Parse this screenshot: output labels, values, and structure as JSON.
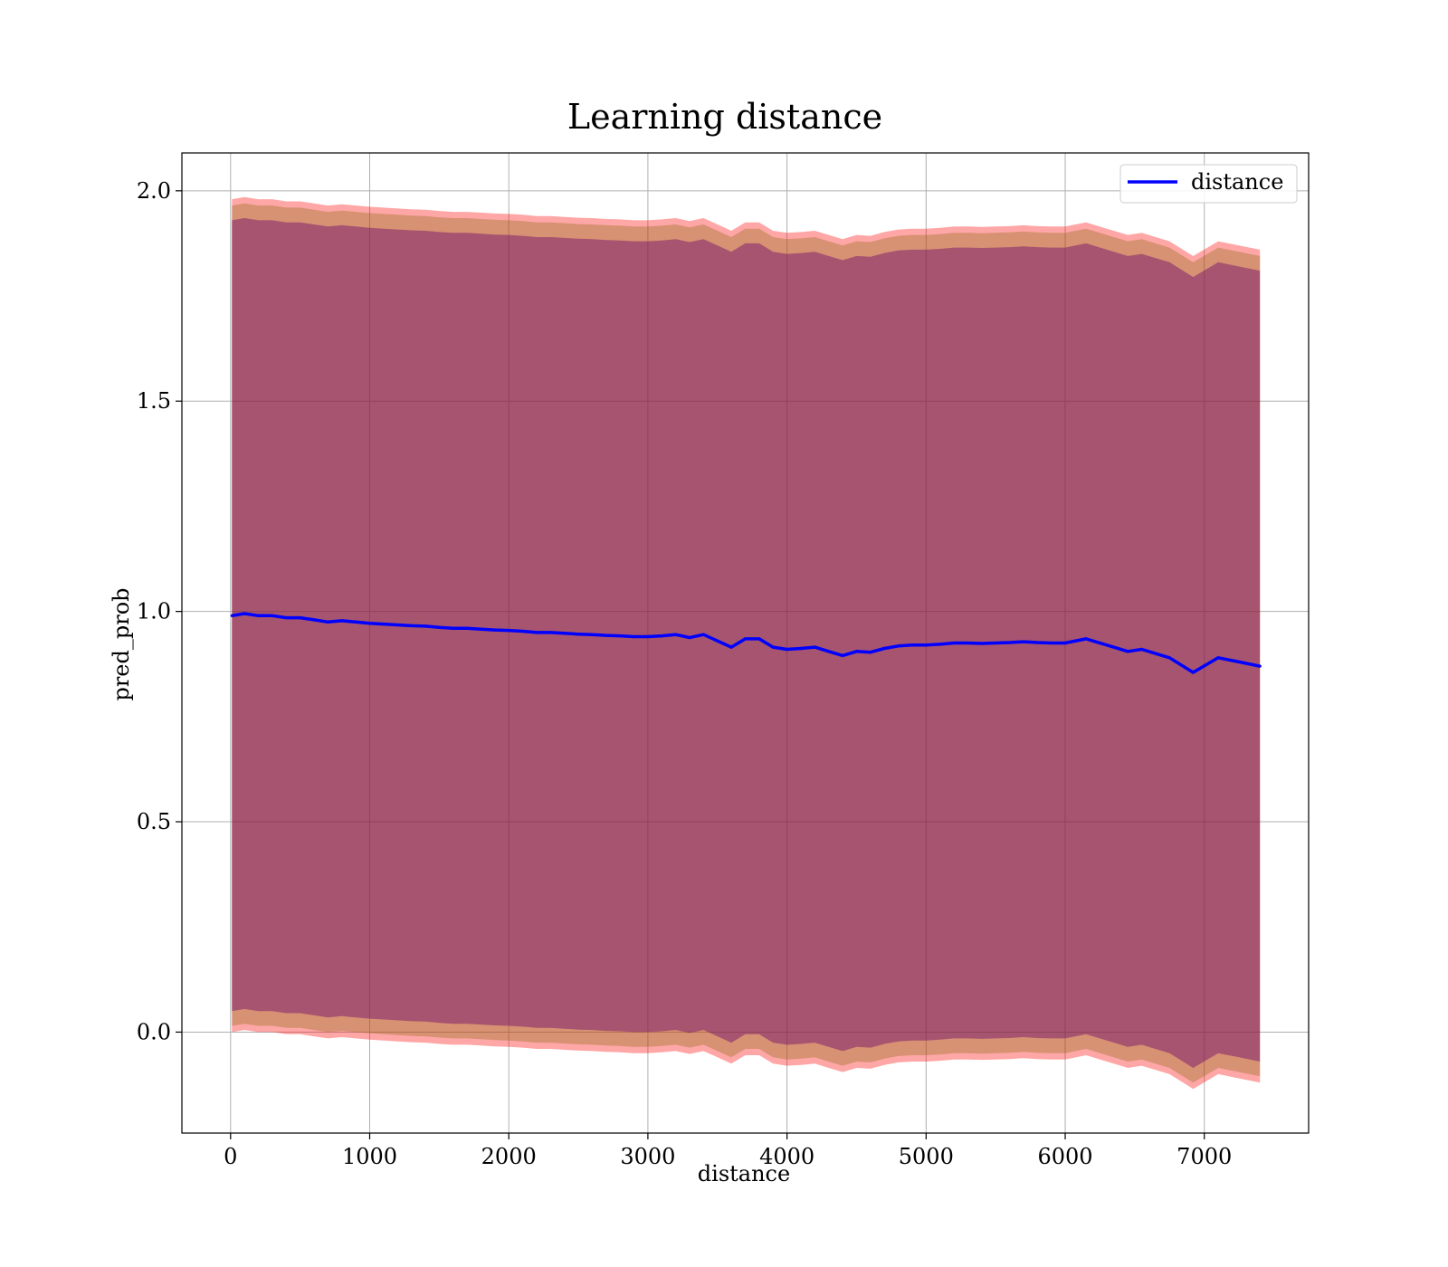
{
  "chart_data": {
    "type": "line",
    "title": "Learning distance",
    "xlabel": "distance",
    "ylabel": "pred_prob",
    "xlim": [
      -350,
      7750
    ],
    "ylim": [
      -0.24,
      2.09
    ],
    "xticks": [
      0,
      1000,
      2000,
      3000,
      4000,
      5000,
      6000,
      7000
    ],
    "yticks": [
      0.0,
      0.5,
      1.0,
      1.5,
      2.0
    ],
    "xtick_labels": [
      "0",
      "1000",
      "2000",
      "3000",
      "4000",
      "5000",
      "6000",
      "7000"
    ],
    "ytick_labels": [
      "0.0",
      "0.5",
      "1.0",
      "1.5",
      "2.0"
    ],
    "grid": true,
    "legend": {
      "position": "top-right",
      "entries": [
        "distance"
      ]
    },
    "colors": {
      "line": "#0000ff",
      "band_outer": "#ff0000",
      "band_middle": "#8b6914",
      "band_inner": "#6a0a6a",
      "grid": "#b0b0b0"
    },
    "series": [
      {
        "name": "distance",
        "x": [
          10,
          100,
          200,
          300,
          400,
          500,
          600,
          700,
          800,
          900,
          1000,
          1100,
          1200,
          1300,
          1400,
          1500,
          1600,
          1700,
          1800,
          1900,
          2000,
          2100,
          2200,
          2300,
          2400,
          2500,
          2600,
          2700,
          2800,
          2900,
          3000,
          3100,
          3200,
          3300,
          3400,
          3500,
          3600,
          3700,
          3800,
          3900,
          4000,
          4100,
          4200,
          4300,
          4400,
          4500,
          4600,
          4700,
          4800,
          4900,
          5000,
          5100,
          5200,
          5300,
          5400,
          5500,
          5600,
          5700,
          5800,
          5900,
          6000,
          6150,
          6300,
          6450,
          6550,
          6750,
          6920,
          7100,
          7250,
          7400
        ],
        "y": [
          0.99,
          0.995,
          0.99,
          0.99,
          0.985,
          0.985,
          0.98,
          0.975,
          0.978,
          0.975,
          0.972,
          0.97,
          0.968,
          0.966,
          0.965,
          0.962,
          0.96,
          0.96,
          0.958,
          0.956,
          0.955,
          0.953,
          0.95,
          0.95,
          0.948,
          0.946,
          0.945,
          0.943,
          0.942,
          0.94,
          0.94,
          0.942,
          0.945,
          0.938,
          0.945,
          0.93,
          0.915,
          0.935,
          0.935,
          0.915,
          0.91,
          0.912,
          0.915,
          0.905,
          0.895,
          0.905,
          0.903,
          0.912,
          0.918,
          0.92,
          0.92,
          0.922,
          0.925,
          0.925,
          0.924,
          0.925,
          0.926,
          0.928,
          0.926,
          0.925,
          0.925,
          0.935,
          0.92,
          0.905,
          0.91,
          0.89,
          0.855,
          0.89,
          0.88,
          0.87
        ]
      }
    ],
    "bands": [
      {
        "level": "outer",
        "half_width_lower": 0.99,
        "half_width_upper": 0.99,
        "color": "#ff0000",
        "opacity": 0.35
      },
      {
        "level": "middle",
        "half_width_lower": 0.975,
        "half_width_upper": 0.975,
        "color": "#8b6914",
        "opacity": 0.35
      },
      {
        "level": "inner",
        "half_width_lower": 0.94,
        "half_width_upper": 0.94,
        "color": "#6a0a6a",
        "opacity": 0.45
      }
    ]
  }
}
